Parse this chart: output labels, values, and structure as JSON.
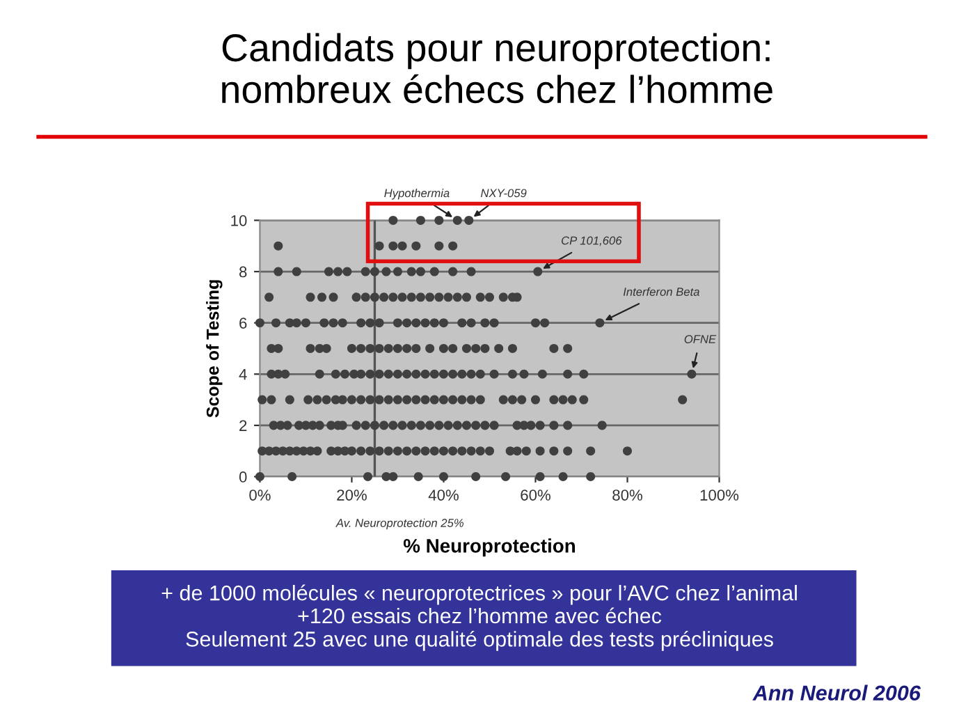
{
  "chart_data": {
    "type": "scatter",
    "title": "Candidats pour neuroprotection:\nnombreux échecs chez l’homme",
    "xlabel": "% Neuroprotection",
    "ylabel": "Scope of Testing",
    "xlim": [
      0,
      100
    ],
    "ylim": [
      0,
      10
    ],
    "xticks": [
      {
        "value": 0,
        "label": "0%"
      },
      {
        "value": 20,
        "label": "20%"
      },
      {
        "value": 40,
        "label": "40%"
      },
      {
        "value": 60,
        "label": "60%"
      },
      {
        "value": 80,
        "label": "80%"
      },
      {
        "value": 100,
        "label": "100%"
      }
    ],
    "yticks": [
      0,
      2,
      4,
      6,
      8,
      10
    ],
    "grid": "y",
    "marker": "circle",
    "ref_lines": [
      {
        "axis": "x",
        "value": 25,
        "label": "Av. Neuroprotection 25%",
        "color": "#555555"
      }
    ],
    "series": [
      {
        "color": "#404040",
        "x": [
          29,
          35,
          39,
          43,
          45.5
        ],
        "values": [
          10,
          10,
          10,
          10,
          10
        ]
      },
      {
        "color": "#404040",
        "x": [
          4,
          26,
          29,
          31,
          34,
          39,
          42
        ],
        "values": [
          9,
          9,
          9,
          9,
          9,
          9,
          9
        ]
      },
      {
        "color": "#404040",
        "x": [
          4,
          8,
          15,
          17,
          19,
          23,
          25,
          27.5,
          30,
          33,
          35,
          38,
          42,
          46,
          60.5
        ],
        "values": [
          8,
          8,
          8,
          8,
          8,
          8,
          8,
          8,
          8,
          8,
          8,
          8,
          8,
          8,
          8
        ]
      },
      {
        "color": "#404040",
        "x": [
          2,
          11,
          13.5,
          16,
          21,
          23,
          25,
          27,
          29,
          31,
          33,
          35,
          37,
          39,
          41,
          43,
          45,
          48,
          50,
          53,
          55,
          56
        ],
        "values": [
          7,
          7,
          7,
          7,
          7,
          7,
          7,
          7,
          7,
          7,
          7,
          7,
          7,
          7,
          7,
          7,
          7,
          7,
          7,
          7,
          7,
          7
        ]
      },
      {
        "color": "#404040",
        "x": [
          0,
          3.5,
          6.5,
          8,
          10,
          14,
          16,
          18,
          22,
          24,
          26,
          30,
          32,
          34,
          36,
          38,
          40,
          44,
          46,
          49,
          51,
          60,
          62,
          74
        ],
        "values": [
          6,
          6,
          6,
          6,
          6,
          6,
          6,
          6,
          6,
          6,
          6,
          6,
          6,
          6,
          6,
          6,
          6,
          6,
          6,
          6,
          6,
          6,
          6,
          6
        ]
      },
      {
        "color": "#404040",
        "x": [
          2.5,
          4,
          11,
          13,
          14.5,
          20,
          22,
          24,
          26,
          28,
          30,
          32,
          34,
          37,
          40,
          42,
          45,
          47,
          49,
          52,
          55,
          64,
          67
        ],
        "values": [
          5,
          5,
          5,
          5,
          5,
          5,
          5,
          5,
          5,
          5,
          5,
          5,
          5,
          5,
          5,
          5,
          5,
          5,
          5,
          5,
          5,
          5,
          5
        ]
      },
      {
        "color": "#404040",
        "x": [
          2.5,
          4,
          5.5,
          13,
          16.5,
          18.5,
          20.5,
          22,
          24,
          26,
          28,
          30,
          32,
          34,
          36,
          38,
          40,
          42,
          44,
          46,
          48,
          51,
          55,
          57.5,
          61.5,
          67,
          70.5,
          94
        ],
        "values": [
          4,
          4,
          4,
          4,
          4,
          4,
          4,
          4,
          4,
          4,
          4,
          4,
          4,
          4,
          4,
          4,
          4,
          4,
          4,
          4,
          4,
          4,
          4,
          4,
          4,
          4,
          4,
          4
        ]
      },
      {
        "color": "#404040",
        "x": [
          0.5,
          2.5,
          6.5,
          10.5,
          12.5,
          14.5,
          16.5,
          18,
          20,
          22,
          24,
          26,
          28,
          30,
          32,
          34,
          36,
          38,
          40,
          42,
          44,
          46,
          48,
          53,
          55,
          57,
          60,
          64,
          66,
          68,
          70.5,
          92
        ],
        "values": [
          3,
          3,
          3,
          3,
          3,
          3,
          3,
          3,
          3,
          3,
          3,
          3,
          3,
          3,
          3,
          3,
          3,
          3,
          3,
          3,
          3,
          3,
          3,
          3,
          3,
          3,
          3,
          3,
          3,
          3,
          3,
          3
        ]
      },
      {
        "color": "#404040",
        "x": [
          3,
          4.5,
          6,
          8.5,
          10,
          11.5,
          13,
          15.5,
          17,
          18,
          21,
          23,
          25,
          27,
          29,
          31,
          33,
          35,
          37,
          39,
          41,
          43,
          45,
          47,
          49,
          51,
          56,
          57.5,
          59,
          61,
          64,
          67,
          74.5
        ],
        "values": [
          2,
          2,
          2,
          2,
          2,
          2,
          2,
          2,
          2,
          2,
          2,
          2,
          2,
          2,
          2,
          2,
          2,
          2,
          2,
          2,
          2,
          2,
          2,
          2,
          2,
          2,
          2,
          2,
          2,
          2,
          2,
          2,
          2
        ]
      },
      {
        "color": "#404040",
        "x": [
          0.5,
          2,
          3.5,
          5,
          6.5,
          8,
          9.5,
          11,
          12.5,
          15.5,
          17,
          18.5,
          20,
          22,
          24,
          26,
          28,
          30,
          32,
          34,
          36,
          38,
          40,
          42,
          44,
          46,
          48,
          50,
          54.5,
          56,
          58,
          61,
          64,
          67,
          72,
          80
        ],
        "values": [
          1,
          1,
          1,
          1,
          1,
          1,
          1,
          1,
          1,
          1,
          1,
          1,
          1,
          1,
          1,
          1,
          1,
          1,
          1,
          1,
          1,
          1,
          1,
          1,
          1,
          1,
          1,
          1,
          1,
          1,
          1,
          1,
          1,
          1,
          1,
          1
        ]
      },
      {
        "color": "#404040",
        "x": [
          0,
          7,
          23.5,
          27.5,
          29,
          34.5,
          40,
          47,
          53.5,
          61,
          66,
          72
        ],
        "values": [
          0,
          0,
          0,
          0,
          0,
          0,
          0,
          0,
          0,
          0,
          0,
          0
        ]
      }
    ],
    "annotations": [
      {
        "text": "Hypothermia",
        "x": 43,
        "y": 10
      },
      {
        "text": "NXY-059",
        "x": 45.5,
        "y": 10
      },
      {
        "text": "CP 101,606",
        "x": 60.5,
        "y": 8
      },
      {
        "text": "Interferon Beta",
        "x": 74,
        "y": 6
      },
      {
        "text": "OFNE",
        "x": 94,
        "y": 4
      },
      "+ de 1000 molécules « neuroprotectrices » pour l’AVC chez l’animal\n+120 essais chez l’homme avec échec\nSeulement 25 avec une qualité optimale des tests précliniques",
      "Ann Neurol 2006"
    ]
  }
}
